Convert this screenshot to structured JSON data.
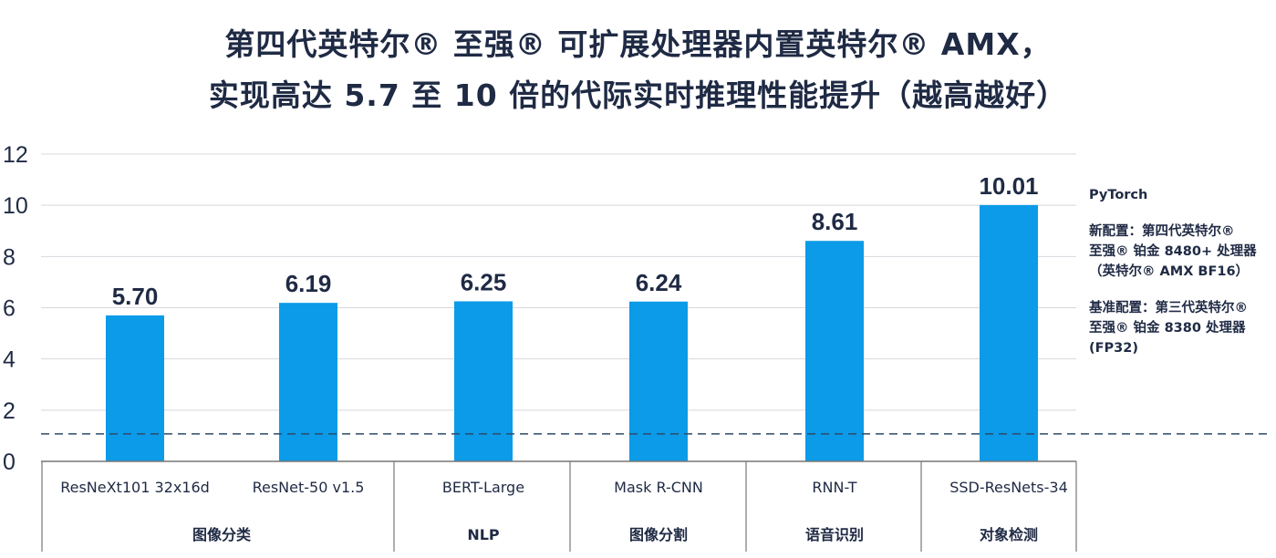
{
  "title": {
    "line1": "第四代英特尔® 至强® 可扩展处理器内置英特尔® AMX，",
    "line2": "实现高达 5.7 至 10 倍的代际实时推理性能提升（越高越好）"
  },
  "legend": {
    "framework": "PyTorch",
    "new_config": [
      "新配置：第四代英特尔®",
      "至强® 铂金 8480+ 处理器",
      "（英特尔® AMX BF16）"
    ],
    "base_config": [
      "基准配置：第三代英特尔®",
      "至强® 铂金 8380 处理器",
      "(FP32)"
    ]
  },
  "colors": {
    "bar": "#0b9be8",
    "text": "#1f2a44",
    "grid": "#d5d8de",
    "baseline": "#2f4a6a"
  },
  "chart_data": {
    "type": "bar",
    "categories": [
      "ResNeXt101 32x16d",
      "ResNet-50 v1.5",
      "BERT-Large",
      "Mask R-CNN",
      "RNN-T",
      "SSD-ResNets-34"
    ],
    "groups": [
      {
        "label": "图像分类",
        "categories": [
          "ResNeXt101 32x16d",
          "ResNet-50 v1.5"
        ]
      },
      {
        "label": "NLP",
        "categories": [
          "BERT-Large"
        ]
      },
      {
        "label": "图像分割",
        "categories": [
          "Mask R-CNN"
        ]
      },
      {
        "label": "语音识别",
        "categories": [
          "RNN-T"
        ]
      },
      {
        "label": "对象检测",
        "categories": [
          "SSD-ResNets-34"
        ]
      }
    ],
    "values": [
      5.7,
      6.19,
      6.25,
      6.24,
      8.61,
      10.01
    ],
    "value_labels": [
      "5.70",
      "6.19",
      "6.25",
      "6.24",
      "8.61",
      "10.01"
    ],
    "ylim": [
      0,
      12
    ],
    "yticks": [
      "0",
      "2",
      "4",
      "6",
      "8",
      "10",
      "12"
    ],
    "baseline": 1,
    "grid": true
  }
}
